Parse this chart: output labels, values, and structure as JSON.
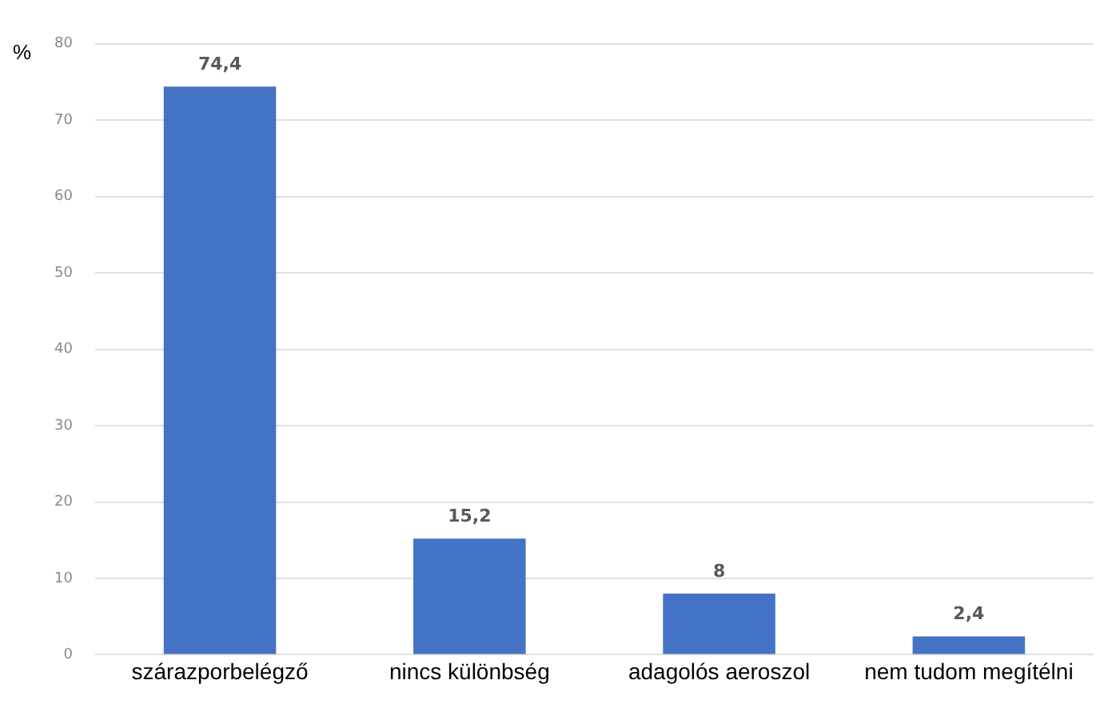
{
  "chart_data": {
    "type": "bar",
    "ylabel": "%",
    "categories": [
      "szárazporbelégző",
      "nincs különbség",
      "adagolós aeroszol",
      "nem tudom megítélni"
    ],
    "values": [
      74.4,
      15.2,
      8,
      2.4
    ],
    "value_labels": [
      "74,4",
      "15,2",
      "8",
      "2,4"
    ],
    "color": "#4472c4",
    "ylim": [
      0,
      80
    ],
    "yticks": [
      0,
      10,
      20,
      30,
      40,
      50,
      60,
      70,
      80
    ],
    "grid": "y",
    "legend": false
  }
}
